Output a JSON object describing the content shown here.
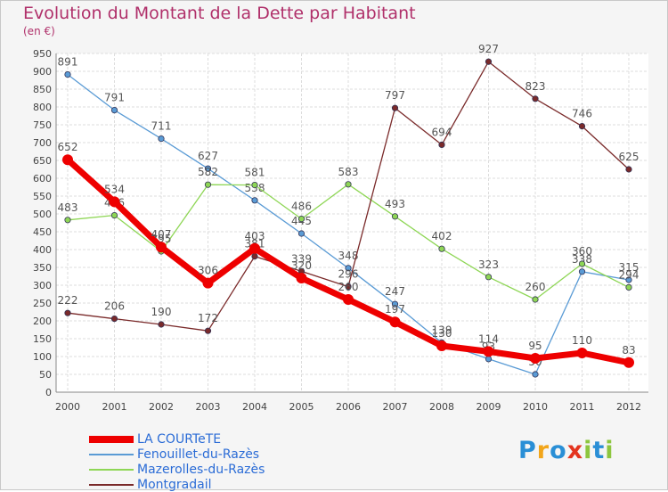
{
  "chart_data": {
    "type": "line",
    "title": "Evolution du Montant de la Dette par Habitant",
    "subtitle": "(en €)",
    "x": [
      "2000",
      "2001",
      "2002",
      "2003",
      "2004",
      "2005",
      "2006",
      "2007",
      "2008",
      "2009",
      "2010",
      "2011",
      "2012"
    ],
    "ylim": [
      0,
      950
    ],
    "yticks": [
      0,
      50,
      100,
      150,
      200,
      250,
      300,
      350,
      400,
      450,
      500,
      550,
      600,
      650,
      700,
      750,
      800,
      850,
      900,
      950
    ],
    "grid": true,
    "legend_position": "bottom-left",
    "series": [
      {
        "name": "LA COURTeTE",
        "color": "#ee0000",
        "values": [
          652,
          534,
          407,
          306,
          403,
          320,
          260,
          197,
          130,
          114,
          95,
          110,
          83
        ]
      },
      {
        "name": "Fenouillet-du-Razès",
        "color": "#5a9bd5",
        "values": [
          891,
          791,
          711,
          627,
          538,
          445,
          348,
          247,
          139,
          93,
          50,
          338,
          315
        ]
      },
      {
        "name": "Mazerolles-du-Razès",
        "color": "#8ed655",
        "values": [
          483,
          496,
          395,
          582,
          581,
          486,
          583,
          493,
          402,
          323,
          260,
          360,
          294
        ]
      },
      {
        "name": "Montgradail",
        "color": "#7a2a2a",
        "values": [
          222,
          206,
          190,
          172,
          381,
          339,
          296,
          797,
          694,
          927,
          823,
          746,
          625
        ]
      }
    ]
  },
  "logo": {
    "text": "Proxiti",
    "letters": [
      {
        "ch": "P",
        "color": "#2a8fd6"
      },
      {
        "ch": "r",
        "color": "#f2a51a"
      },
      {
        "ch": "o",
        "color": "#2a8fd6"
      },
      {
        "ch": "x",
        "color": "#e4341e"
      },
      {
        "ch": "i",
        "color": "#8dc63f"
      },
      {
        "ch": "t",
        "color": "#2a8fd6"
      },
      {
        "ch": "i",
        "color": "#8dc63f"
      }
    ]
  }
}
